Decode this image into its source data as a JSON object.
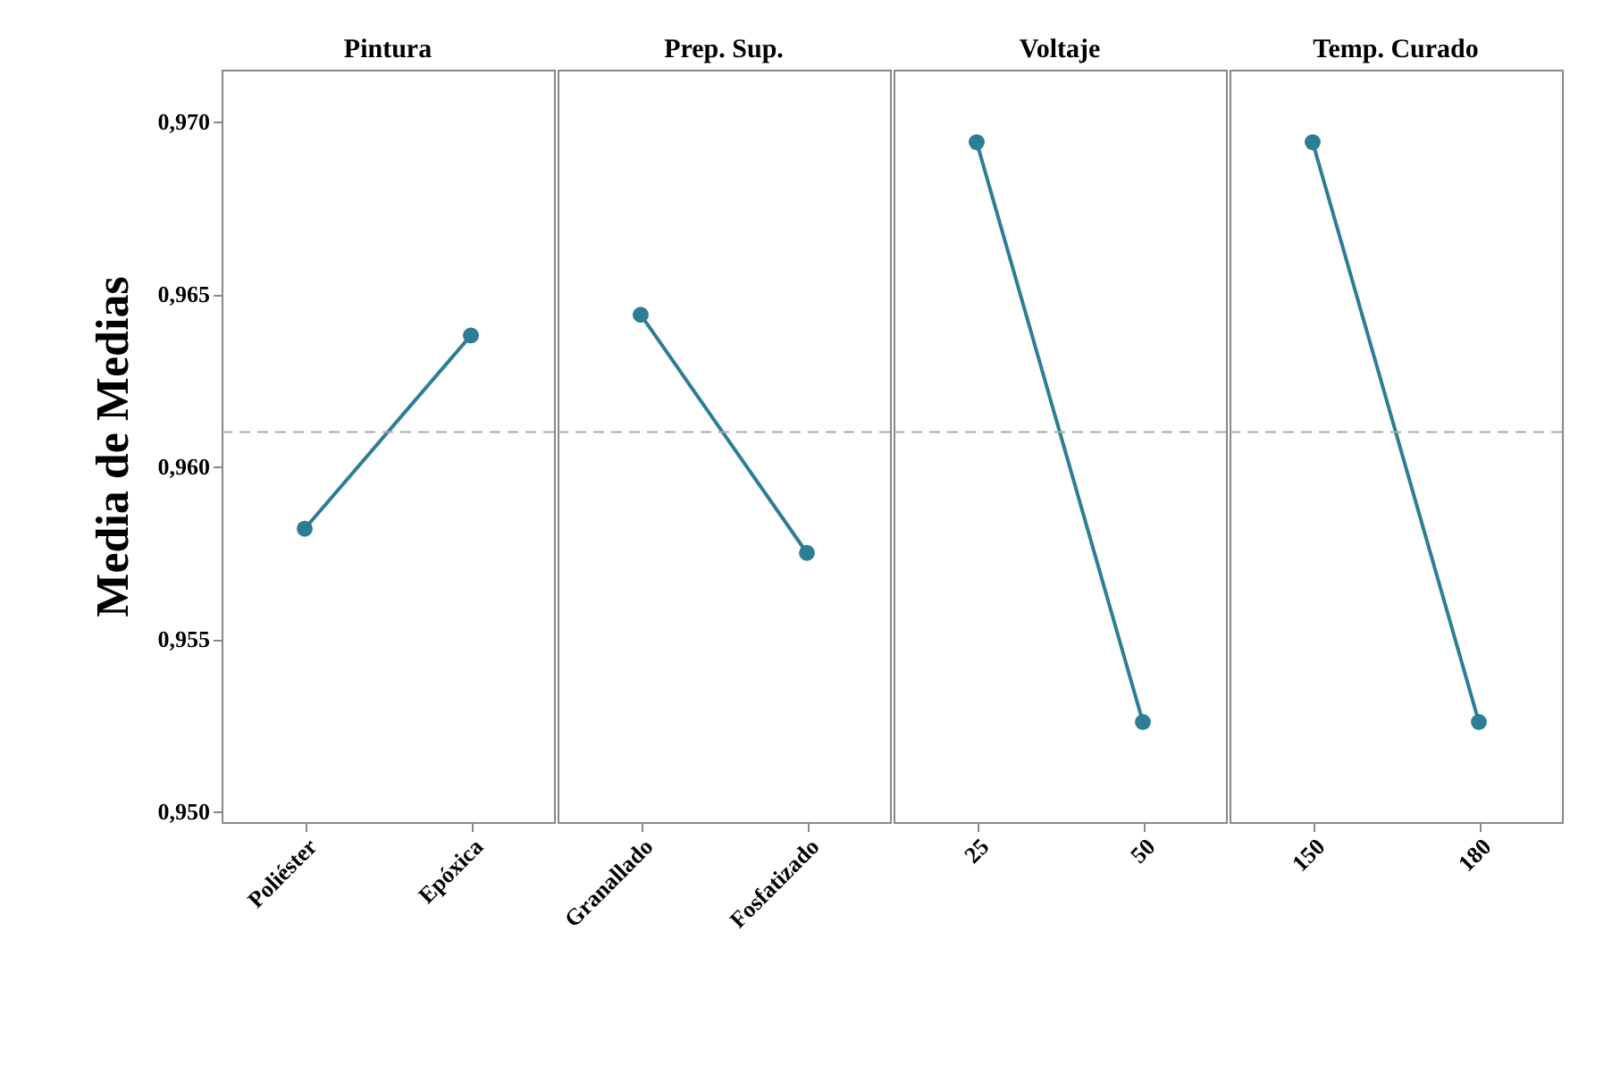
{
  "chart_data": [
    {
      "type": "line",
      "title": "Pintura",
      "ylabel": "Media de Medias",
      "categories": [
        "Poliéster",
        "Epóxica"
      ],
      "series": [
        {
          "color": "#2e7d96",
          "values": [
            0.9582,
            0.9638
          ]
        }
      ],
      "ylim": [
        0.9497,
        0.9715
      ],
      "yticks": [
        {
          "value": 0.95,
          "label": "0,950"
        },
        {
          "value": 0.955,
          "label": "0,955"
        },
        {
          "value": 0.96,
          "label": "0,960"
        },
        {
          "value": 0.965,
          "label": "0,965"
        },
        {
          "value": 0.97,
          "label": "0,970"
        }
      ],
      "ref_lines": [
        {
          "axis": "y",
          "value": 0.961,
          "color": "#aaaaaa",
          "line_style": "dashed"
        }
      ],
      "marker": "circle",
      "line_style": "solid",
      "grid": false
    },
    {
      "type": "line",
      "title": "Prep. Sup.",
      "categories": [
        "Granallado",
        "Fosfatizado"
      ],
      "series": [
        {
          "color": "#2e7d96",
          "values": [
            0.9644,
            0.9575
          ]
        }
      ],
      "ylim": [
        0.9497,
        0.9715
      ],
      "ref_lines": [
        {
          "axis": "y",
          "value": 0.961,
          "color": "#aaaaaa",
          "line_style": "dashed"
        }
      ],
      "marker": "circle",
      "line_style": "solid",
      "grid": false,
      "tick_labels": "x"
    },
    {
      "type": "line",
      "title": "Voltaje",
      "categories": [
        "25",
        "50"
      ],
      "series": [
        {
          "color": "#2e7d96",
          "values": [
            0.9694,
            0.9526
          ]
        }
      ],
      "ylim": [
        0.9497,
        0.9715
      ],
      "ref_lines": [
        {
          "axis": "y",
          "value": 0.961,
          "color": "#aaaaaa",
          "line_style": "dashed"
        }
      ],
      "marker": "circle",
      "line_style": "solid",
      "grid": false,
      "tick_labels": "x"
    },
    {
      "type": "line",
      "title": "Temp. Curado",
      "categories": [
        "150",
        "180"
      ],
      "series": [
        {
          "color": "#2e7d96",
          "values": [
            0.9694,
            0.9526
          ]
        }
      ],
      "ylim": [
        0.9497,
        0.9715
      ],
      "ref_lines": [
        {
          "axis": "y",
          "value": 0.961,
          "color": "#aaaaaa",
          "line_style": "dashed"
        }
      ],
      "marker": "circle",
      "line_style": "solid",
      "grid": false,
      "tick_labels": "x"
    }
  ]
}
